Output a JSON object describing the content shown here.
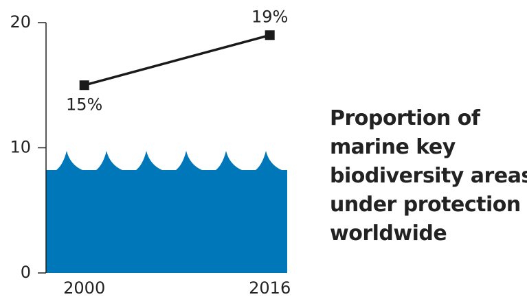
{
  "chart_data": {
    "type": "line",
    "title": [
      "Proportion of",
      "marine key",
      "biodiversity areas",
      "under protection",
      "worldwide"
    ],
    "x": [
      2000,
      2016
    ],
    "xlim": [
      1996.7,
      2017.5
    ],
    "xticks": [
      2000,
      2016
    ],
    "series": [
      {
        "color": "#1a1a1a",
        "values": [
          15,
          19
        ],
        "value_labels": [
          "15%",
          "19%"
        ]
      }
    ],
    "ylim": [
      0,
      20
    ],
    "yticks": [
      0,
      10,
      20
    ]
  }
}
